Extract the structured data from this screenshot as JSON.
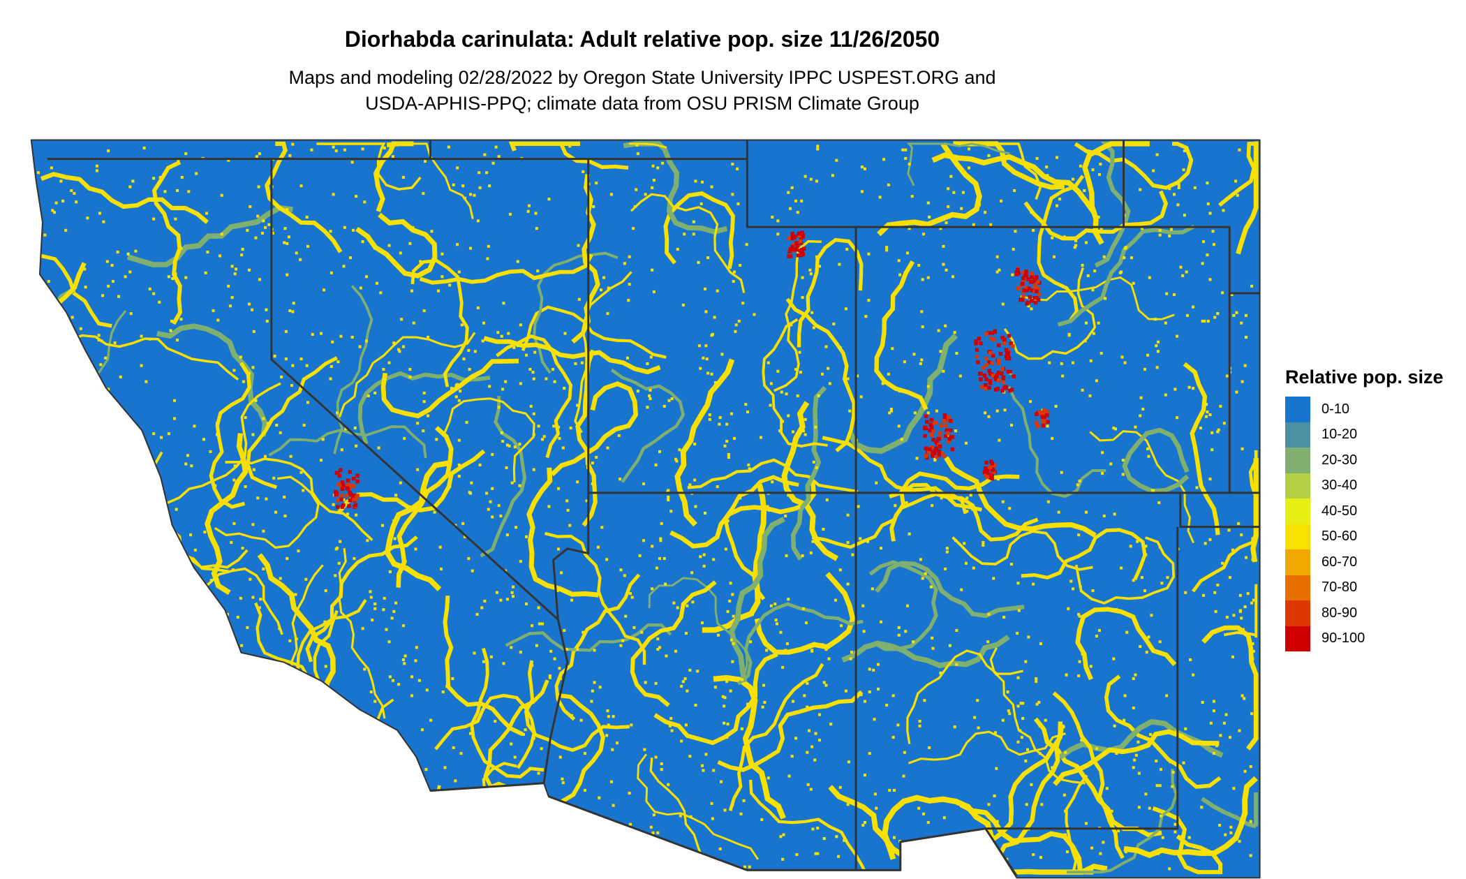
{
  "title": "Diorhabda carinulata: Adult relative pop. size 11/26/2050",
  "subtitle_lines": [
    "Maps and modeling 02/28/2022 by Oregon State University IPPC USPEST.ORG and",
    "USDA-APHIS-PPQ; climate data from OSU PRISM Climate Group"
  ],
  "legend": {
    "title": "Relative pop. size",
    "items": [
      {
        "label": "0-10",
        "color": "#1874CD"
      },
      {
        "label": "10-20",
        "color": "#4A90A0"
      },
      {
        "label": "20-30",
        "color": "#7FB070"
      },
      {
        "label": "30-40",
        "color": "#B3D045"
      },
      {
        "label": "40-50",
        "color": "#E5EE15"
      },
      {
        "label": "50-60",
        "color": "#F8E000"
      },
      {
        "label": "60-70",
        "color": "#F0A800"
      },
      {
        "label": "70-80",
        "color": "#E87000"
      },
      {
        "label": "80-90",
        "color": "#DC3800"
      },
      {
        "label": "90-100",
        "color": "#D00000"
      }
    ]
  },
  "map": {
    "region": "Western United States",
    "border_color": "#333333",
    "dominant_class": "0-10"
  }
}
